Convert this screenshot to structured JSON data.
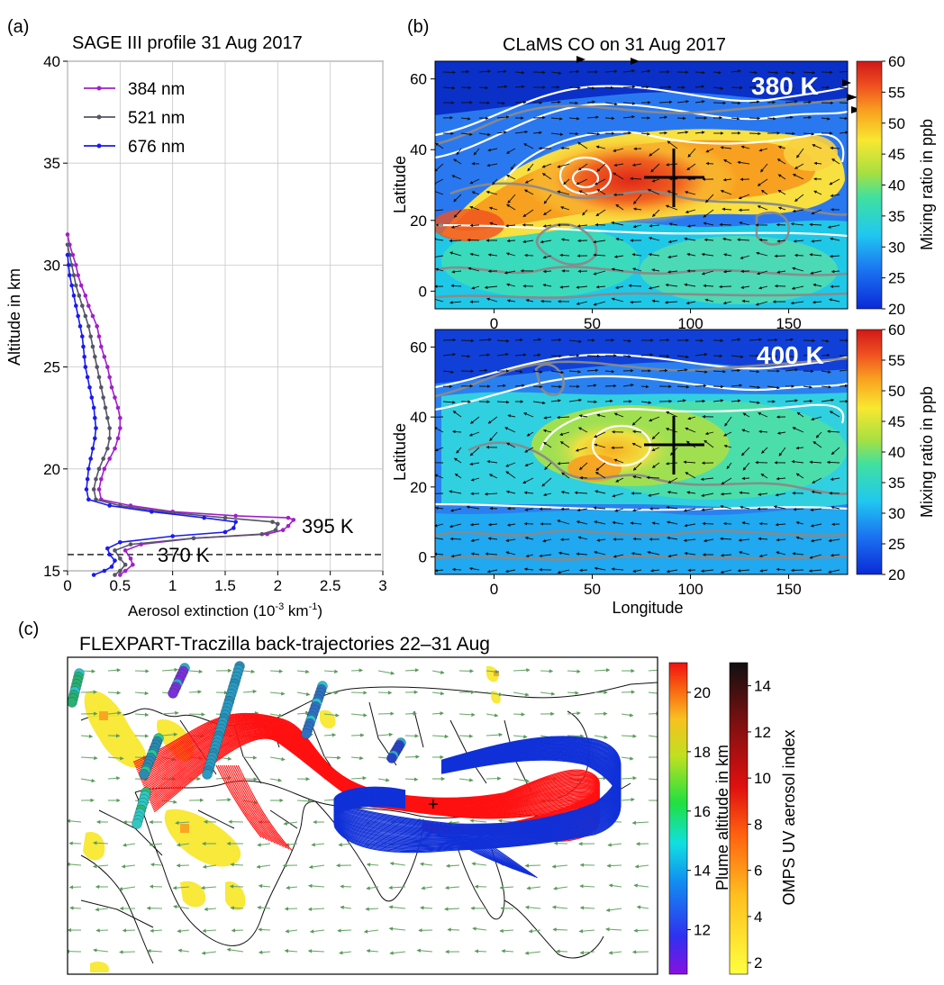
{
  "panel_labels": {
    "a": "(a)",
    "b": "(b)",
    "c": "(c)"
  },
  "panel_a": {
    "title": "SAGE III profile  31 Aug  2017",
    "xlabel": "Aerosol extinction (10",
    "xlabel_exp1": "-3",
    "xlabel_mid": " km",
    "xlabel_exp2": "-1",
    "xlabel_end": ")",
    "ylabel": "Altitude in km",
    "annotation_395": "395 K",
    "annotation_370": "370 K"
  },
  "panel_b": {
    "title": "CLaMS CO on 31 Aug  2017",
    "top_label": "380 K",
    "bottom_label": "400 K",
    "ylabel": "Latitude",
    "xlabel": "Longitude",
    "colorbar_label": "Mixing ratio in ppb",
    "colorbar_ticks": [
      "20",
      "25",
      "30",
      "35",
      "40",
      "45",
      "50",
      "55",
      "60"
    ]
  },
  "panel_c": {
    "title": "FLEXPART-Traczilla back-trajectories  22–31 Aug",
    "cb1_label": "Plume altitude in km",
    "cb1_ticks": [
      "12",
      "14",
      "16",
      "18",
      "20"
    ],
    "cb2_label": "OMPS UV aerosol index",
    "cb2_ticks": [
      "2",
      "4",
      "6",
      "8",
      "10",
      "12",
      "14"
    ]
  },
  "colors": {
    "c384": "#a020c8",
    "c521": "#555566",
    "c676": "#1a1aee",
    "traj_red": "#ff1010",
    "traj_blue": "#1030d8"
  },
  "chart_data": [
    {
      "type": "line",
      "title": "SAGE III profile  31 Aug  2017",
      "xlabel": "Aerosol extinction (10-3 km-1)",
      "ylabel": "Altitude in km",
      "xlim": [
        0,
        3
      ],
      "ylim": [
        15,
        40
      ],
      "xticks": [
        0,
        0.5,
        1,
        1.5,
        2,
        2.5,
        3
      ],
      "yticks": [
        15,
        20,
        25,
        30,
        35,
        40
      ],
      "grid": true,
      "legend": "top-left",
      "hline": 15.8,
      "series": [
        {
          "name": "384 nm",
          "points": [
            [
              0.0,
              31.5
            ],
            [
              0.02,
              31
            ],
            [
              0.05,
              30.5
            ],
            [
              0.08,
              30
            ],
            [
              0.1,
              29.5
            ],
            [
              0.13,
              29
            ],
            [
              0.17,
              28.5
            ],
            [
              0.2,
              28
            ],
            [
              0.24,
              27.5
            ],
            [
              0.28,
              27
            ],
            [
              0.3,
              26.5
            ],
            [
              0.32,
              26
            ],
            [
              0.35,
              25.5
            ],
            [
              0.38,
              25
            ],
            [
              0.4,
              24.5
            ],
            [
              0.42,
              24
            ],
            [
              0.45,
              23.5
            ],
            [
              0.48,
              23
            ],
            [
              0.5,
              22.5
            ],
            [
              0.5,
              22
            ],
            [
              0.48,
              21.5
            ],
            [
              0.45,
              21
            ],
            [
              0.4,
              20.5
            ],
            [
              0.35,
              20
            ],
            [
              0.32,
              19.5
            ],
            [
              0.3,
              19
            ],
            [
              0.32,
              18.5
            ],
            [
              0.6,
              18.2
            ],
            [
              1.0,
              17.9
            ],
            [
              1.6,
              17.7
            ],
            [
              2.1,
              17.6
            ],
            [
              2.15,
              17.5
            ],
            [
              2.1,
              17.2
            ],
            [
              2.05,
              17.0
            ],
            [
              1.9,
              16.8
            ],
            [
              1.2,
              16.6
            ],
            [
              0.7,
              16.3
            ],
            [
              0.55,
              16
            ],
            [
              0.6,
              15.6
            ],
            [
              0.62,
              15.3
            ],
            [
              0.55,
              15.0
            ],
            [
              0.5,
              14.8
            ]
          ]
        },
        {
          "name": "521 nm",
          "points": [
            [
              0.0,
              31
            ],
            [
              0.02,
              30.5
            ],
            [
              0.04,
              30
            ],
            [
              0.06,
              29.5
            ],
            [
              0.08,
              29
            ],
            [
              0.11,
              28.5
            ],
            [
              0.14,
              28
            ],
            [
              0.17,
              27.5
            ],
            [
              0.2,
              27
            ],
            [
              0.22,
              26.5
            ],
            [
              0.24,
              26
            ],
            [
              0.26,
              25.5
            ],
            [
              0.28,
              25
            ],
            [
              0.3,
              24.5
            ],
            [
              0.32,
              24
            ],
            [
              0.34,
              23.5
            ],
            [
              0.36,
              23
            ],
            [
              0.38,
              22.5
            ],
            [
              0.4,
              22
            ],
            [
              0.4,
              21.5
            ],
            [
              0.38,
              21
            ],
            [
              0.34,
              20.5
            ],
            [
              0.3,
              20
            ],
            [
              0.27,
              19.5
            ],
            [
              0.25,
              19
            ],
            [
              0.27,
              18.5
            ],
            [
              0.5,
              18.2
            ],
            [
              0.9,
              17.9
            ],
            [
              1.5,
              17.6
            ],
            [
              1.95,
              17.4
            ],
            [
              2.0,
              17.3
            ],
            [
              1.98,
              17.0
            ],
            [
              1.85,
              16.8
            ],
            [
              1.2,
              16.6
            ],
            [
              0.6,
              16.3
            ],
            [
              0.45,
              16
            ],
            [
              0.5,
              15.6
            ],
            [
              0.55,
              15.3
            ],
            [
              0.5,
              15.0
            ],
            [
              0.45,
              14.8
            ]
          ]
        },
        {
          "name": "676 nm",
          "points": [
            [
              0.0,
              30.5
            ],
            [
              0.01,
              30
            ],
            [
              0.02,
              29.5
            ],
            [
              0.04,
              29
            ],
            [
              0.06,
              28.5
            ],
            [
              0.08,
              28
            ],
            [
              0.1,
              27.5
            ],
            [
              0.12,
              27
            ],
            [
              0.14,
              26.5
            ],
            [
              0.15,
              26
            ],
            [
              0.16,
              25.5
            ],
            [
              0.17,
              25
            ],
            [
              0.19,
              24.5
            ],
            [
              0.21,
              24
            ],
            [
              0.23,
              23.5
            ],
            [
              0.25,
              23
            ],
            [
              0.26,
              22.5
            ],
            [
              0.27,
              22
            ],
            [
              0.26,
              21.5
            ],
            [
              0.24,
              21
            ],
            [
              0.22,
              20.5
            ],
            [
              0.2,
              20
            ],
            [
              0.19,
              19.5
            ],
            [
              0.18,
              19
            ],
            [
              0.2,
              18.5
            ],
            [
              0.4,
              18.2
            ],
            [
              0.8,
              17.9
            ],
            [
              1.3,
              17.6
            ],
            [
              1.6,
              17.4
            ],
            [
              1.58,
              17.1
            ],
            [
              1.5,
              16.9
            ],
            [
              1.0,
              16.7
            ],
            [
              0.5,
              16.4
            ],
            [
              0.38,
              16.1
            ],
            [
              0.4,
              15.8
            ],
            [
              0.45,
              15.5
            ],
            [
              0.42,
              15.2
            ],
            [
              0.35,
              15.0
            ],
            [
              0.25,
              14.8
            ]
          ]
        }
      ]
    },
    {
      "type": "heatmap",
      "title": "CLaMS CO on 31 Aug  2017",
      "panel": "380 K",
      "xlabel": "",
      "ylabel": "Latitude",
      "xlim": [
        -30,
        180
      ],
      "ylim": [
        -5,
        65
      ],
      "xticks": [
        0,
        50,
        100,
        150
      ],
      "yticks": [
        0,
        20,
        40,
        60
      ],
      "colorbar": {
        "label": "Mixing ratio in ppb",
        "range": [
          20,
          60
        ]
      },
      "marker": [
        90,
        32
      ]
    },
    {
      "type": "heatmap",
      "panel": "400 K",
      "xlabel": "Longitude",
      "ylabel": "Latitude",
      "xlim": [
        -30,
        180
      ],
      "ylim": [
        -5,
        65
      ],
      "xticks": [
        0,
        50,
        100,
        150
      ],
      "yticks": [
        0,
        20,
        40,
        60
      ],
      "colorbar": {
        "label": "Mixing ratio in ppb",
        "range": [
          20,
          60
        ]
      },
      "marker": [
        90,
        31
      ]
    },
    {
      "type": "scatter",
      "title": "FLEXPART-Traczilla back-trajectories  22–31 Aug",
      "colorbars": [
        {
          "label": "Plume altitude in km",
          "range": [
            10.5,
            21
          ]
        },
        {
          "label": "OMPS UV aerosol index",
          "range": [
            1.5,
            15
          ]
        }
      ]
    }
  ]
}
